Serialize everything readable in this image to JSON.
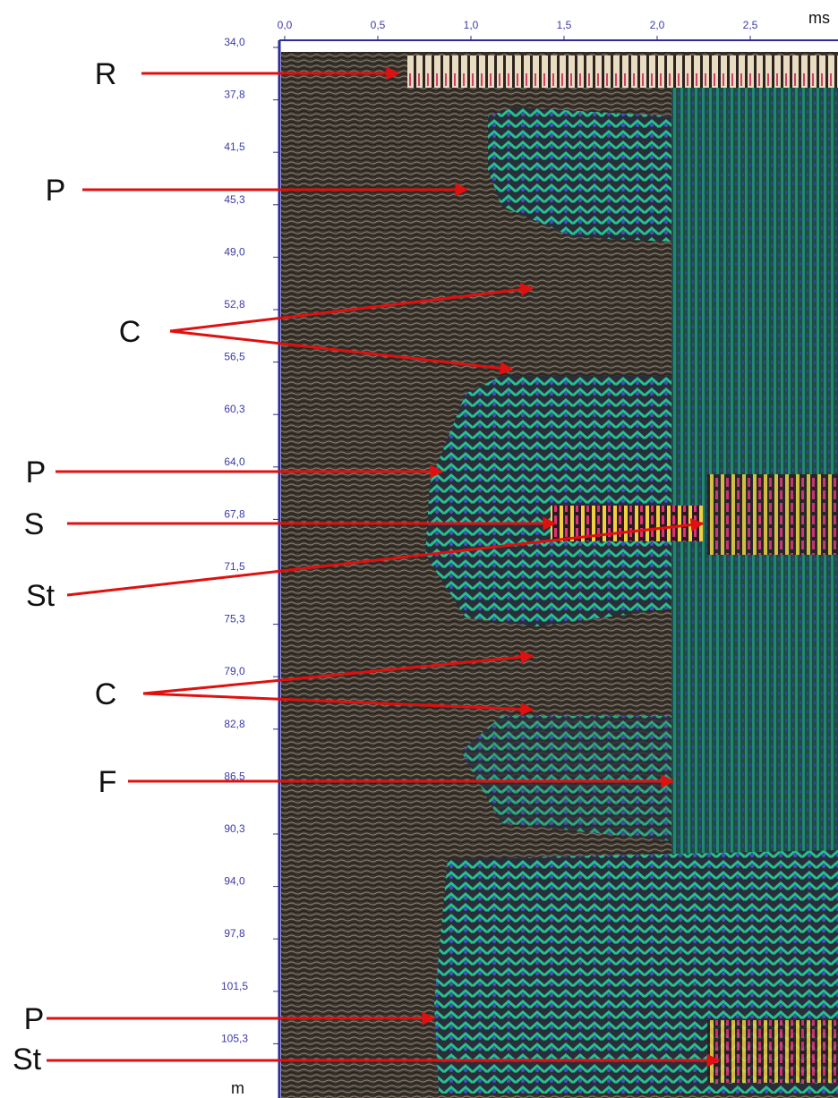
{
  "figure": {
    "time_axis": {
      "unit": "ms",
      "ticks": [
        "0,0",
        "0,5",
        "1,0",
        "1,5",
        "2,0",
        "2,5"
      ]
    },
    "distance_axis": {
      "unit": "m",
      "ticks": [
        "34,0",
        "37,8",
        "41,5",
        "45,3",
        "49,0",
        "52,8",
        "56,5",
        "60,3",
        "64,0",
        "67,8",
        "71,5",
        "75,3",
        "79,0",
        "82,8",
        "86,5",
        "90,3",
        "94,0",
        "97,8",
        "101,5",
        "105,3"
      ]
    },
    "annotations": [
      "R",
      "P",
      "C",
      "P",
      "S",
      "St",
      "C",
      "F",
      "P",
      "St"
    ]
  }
}
